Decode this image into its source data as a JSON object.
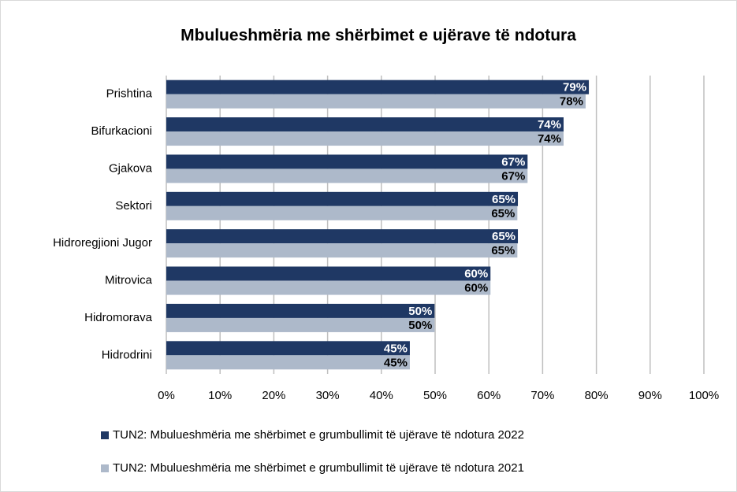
{
  "chart_data": {
    "type": "bar",
    "orientation": "horizontal",
    "title": "Mbulueshmëria me shërbimet e ujërave të ndotura",
    "categories": [
      "Prishtina",
      "Bifurkacioni",
      "Gjakova",
      "Sektori",
      "Hidroregjioni Jugor",
      "Mitrovica",
      "Hidromorava",
      "Hidrodrini"
    ],
    "series": [
      {
        "name": "TUN2: Mbulueshmëria me shërbimet e grumbullimit të ujërave të ndotura 2022",
        "color": "#1f3864",
        "values": [
          78.6,
          73.9,
          67.2,
          65.4,
          65.4,
          60.3,
          49.9,
          45.3
        ],
        "value_labels": [
          "79%",
          "74%",
          "67%",
          "65%",
          "65%",
          "60%",
          "50%",
          "45%"
        ]
      },
      {
        "name": "TUN2: Mbulueshmëria me shërbimet e grumbullimit të ujërave të ndotura 2021",
        "color": "#adb9ca",
        "values": [
          78.0,
          73.9,
          67.2,
          65.3,
          65.3,
          60.3,
          49.9,
          45.3
        ],
        "value_labels": [
          "78%",
          "74%",
          "67%",
          "65%",
          "65%",
          "60%",
          "50%",
          "45%"
        ]
      }
    ],
    "xlim": [
      0,
      100
    ],
    "xticks": [
      {
        "value": 0,
        "label": "0%"
      },
      {
        "value": 10,
        "label": "10%"
      },
      {
        "value": 20,
        "label": "20%"
      },
      {
        "value": 30,
        "label": "30%"
      },
      {
        "value": 40,
        "label": "40%"
      },
      {
        "value": 50,
        "label": "50%"
      },
      {
        "value": 60,
        "label": "60%"
      },
      {
        "value": 70,
        "label": "70%"
      },
      {
        "value": 80,
        "label": "80%"
      },
      {
        "value": 90,
        "label": "90%"
      },
      {
        "value": 100,
        "label": "100%"
      }
    ],
    "grid": true,
    "legend": "bottom"
  }
}
